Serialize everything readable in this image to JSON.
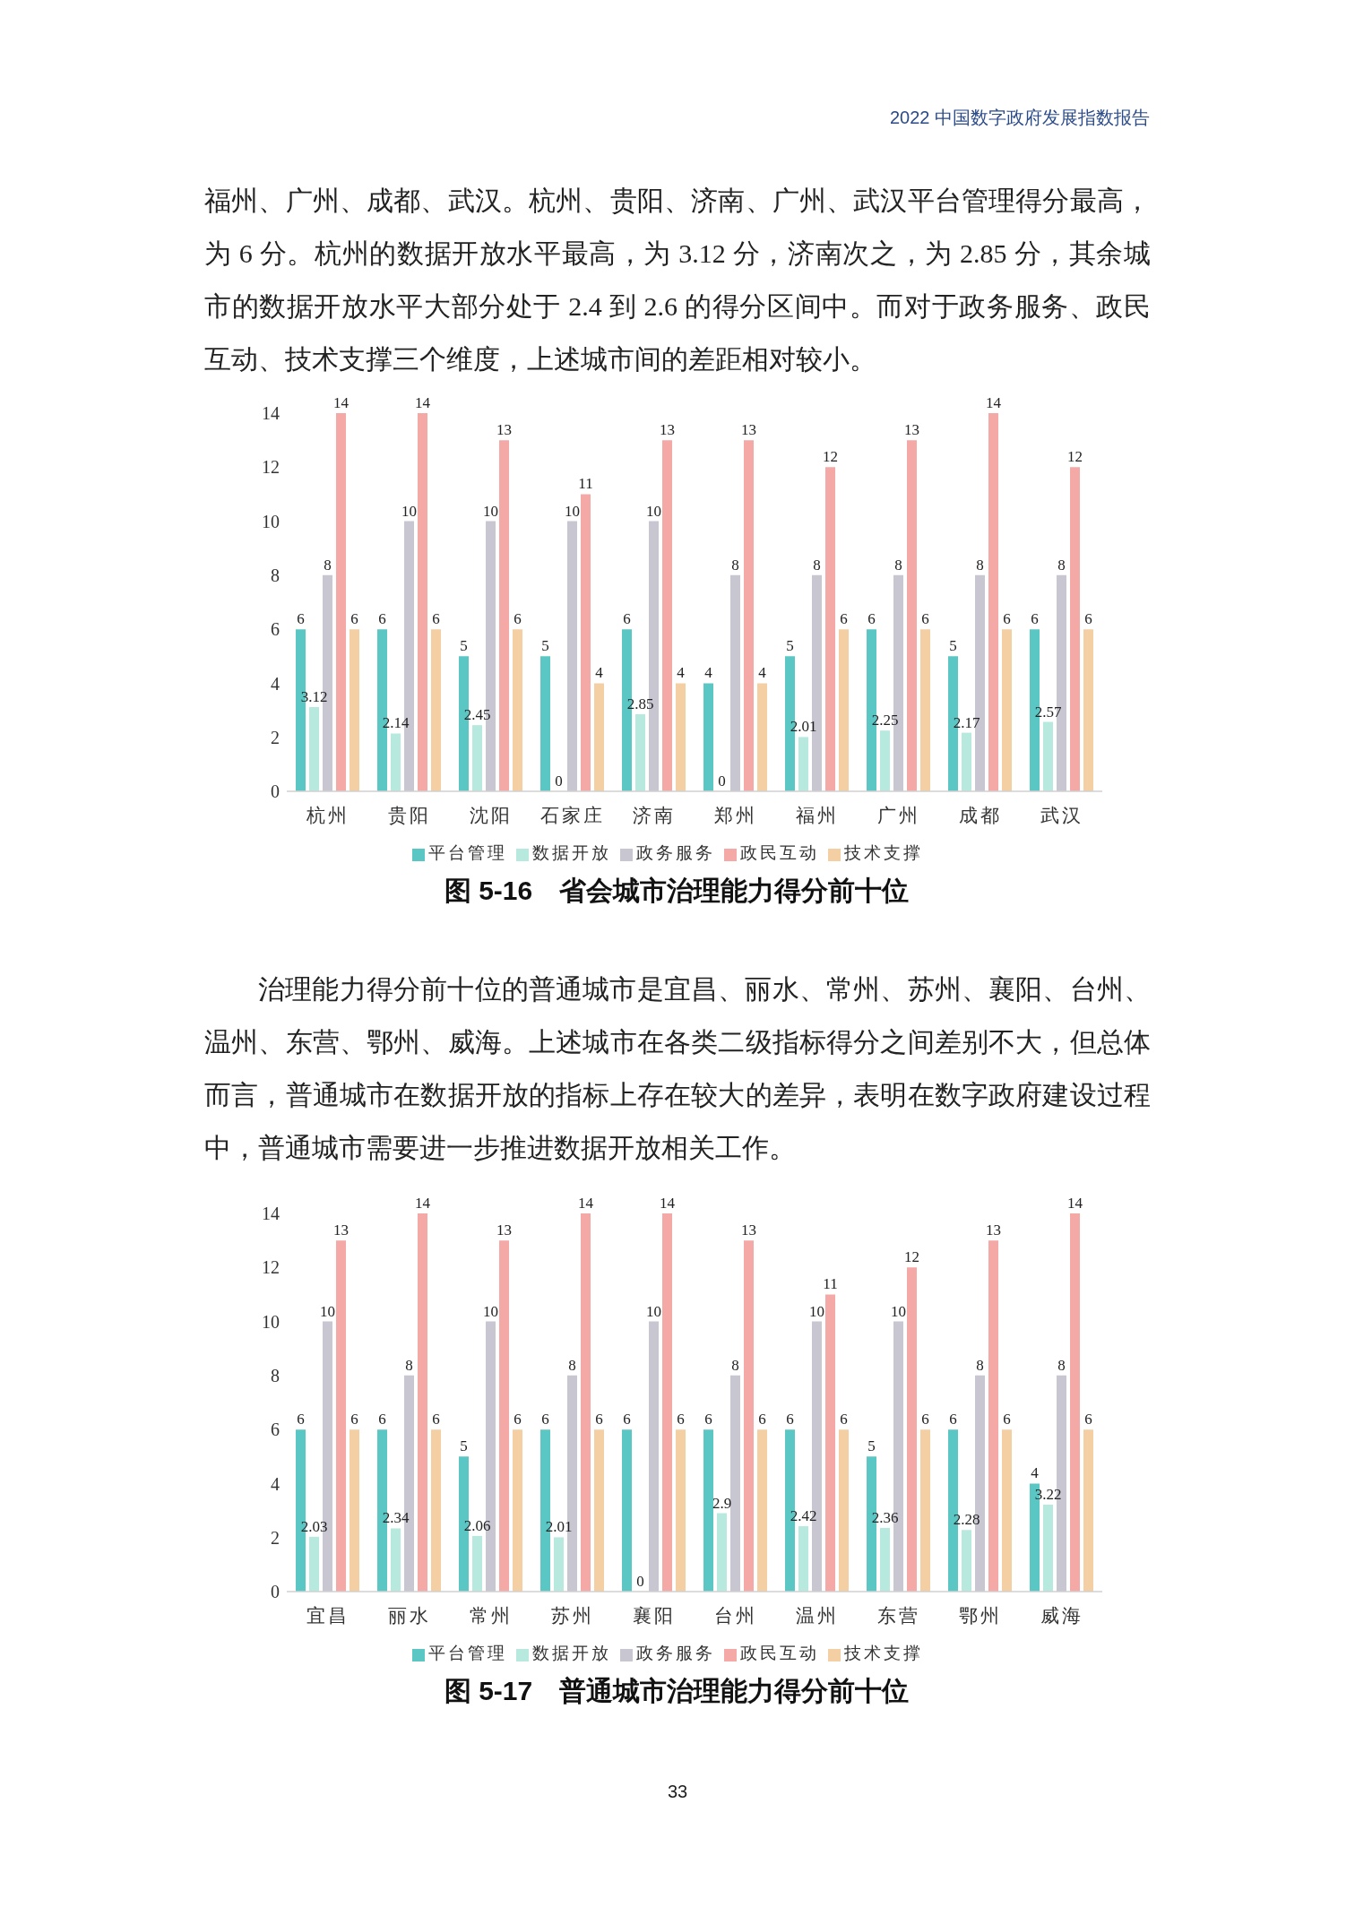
{
  "chart_data": [
    {
      "type": "bar",
      "title": "图 5-16　省会城市治理能力得分前十位",
      "annotations": [
        "2022 中国数字政府发展指数报告",
        "福州、广州、成都、武汉。杭州、贵阳、济南、广州、武汉平台管理得分最高，为 6 分。杭州的数据开放水平最高，为 3.12 分，济南次之，为 2.85 分，其余城市的数据开放水平大部分处于 2.4 到 2.6 的得分区间中。而对于政务服务、政民互动、技术支撑三个维度，上述城市间的差距相对较小。"
      ],
      "categories": [
        "杭州",
        "贵阳",
        "沈阳",
        "石家庄",
        "济南",
        "郑州",
        "福州",
        "广州",
        "成都",
        "武汉"
      ],
      "series": [
        {
          "name": "平台管理",
          "color": "#5bc7c4",
          "values": [
            6,
            6,
            5,
            5,
            6,
            4,
            5,
            6,
            5,
            6
          ]
        },
        {
          "name": "数据开放",
          "color": "#b7e9de",
          "values": [
            3.12,
            2.14,
            2.45,
            0,
            2.85,
            0,
            2.01,
            2.25,
            2.17,
            2.57
          ]
        },
        {
          "name": "政务服务",
          "color": "#c8c6d1",
          "values": [
            8,
            10,
            10,
            10,
            10,
            8,
            8,
            8,
            8,
            8
          ]
        },
        {
          "name": "政民互动",
          "color": "#f5a9a7",
          "values": [
            14,
            14,
            13,
            11,
            13,
            13,
            12,
            13,
            14,
            12
          ]
        },
        {
          "name": "技术支撑",
          "color": "#f4cfa3",
          "values": [
            6,
            6,
            6,
            4,
            4,
            4,
            6,
            6,
            6,
            6
          ]
        }
      ],
      "ylim": [
        0,
        14
      ],
      "yticks": [
        0,
        2,
        4,
        6,
        8,
        10,
        12,
        14
      ],
      "legend": "bottom",
      "data_labels": true
    },
    {
      "type": "bar",
      "title": "图 5-17　普通城市治理能力得分前十位",
      "annotations": [
        "治理能力得分前十位的普通城市是宜昌、丽水、常州、苏州、襄阳、台州、温州、东营、鄂州、威海。上述城市在各类二级指标得分之间差别不大，但总体而言，普通城市在数据开放的指标上存在较大的差异，表明在数字政府建设过程中，普通城市需要进一步推进数据开放相关工作。",
        "33"
      ],
      "categories": [
        "宜昌",
        "丽水",
        "常州",
        "苏州",
        "襄阳",
        "台州",
        "温州",
        "东营",
        "鄂州",
        "威海"
      ],
      "series": [
        {
          "name": "平台管理",
          "color": "#5bc7c4",
          "values": [
            6,
            6,
            5,
            6,
            6,
            6,
            6,
            5,
            6,
            4
          ]
        },
        {
          "name": "数据开放",
          "color": "#b7e9de",
          "values": [
            2.03,
            2.34,
            2.06,
            2.01,
            0,
            2.9,
            2.42,
            2.36,
            2.28,
            3.22
          ]
        },
        {
          "name": "政务服务",
          "color": "#c8c6d1",
          "values": [
            10,
            8,
            10,
            8,
            10,
            8,
            10,
            10,
            8,
            8
          ]
        },
        {
          "name": "政民互动",
          "color": "#f5a9a7",
          "values": [
            13,
            14,
            13,
            14,
            14,
            13,
            11,
            12,
            13,
            14
          ]
        },
        {
          "name": "技术支撑",
          "color": "#f4cfa3",
          "values": [
            6,
            6,
            6,
            6,
            6,
            6,
            6,
            6,
            6,
            6
          ]
        }
      ],
      "ylim": [
        0,
        14
      ],
      "yticks": [
        0,
        2,
        4,
        6,
        8,
        10,
        12,
        14
      ],
      "legend": "bottom",
      "data_labels": true
    }
  ]
}
